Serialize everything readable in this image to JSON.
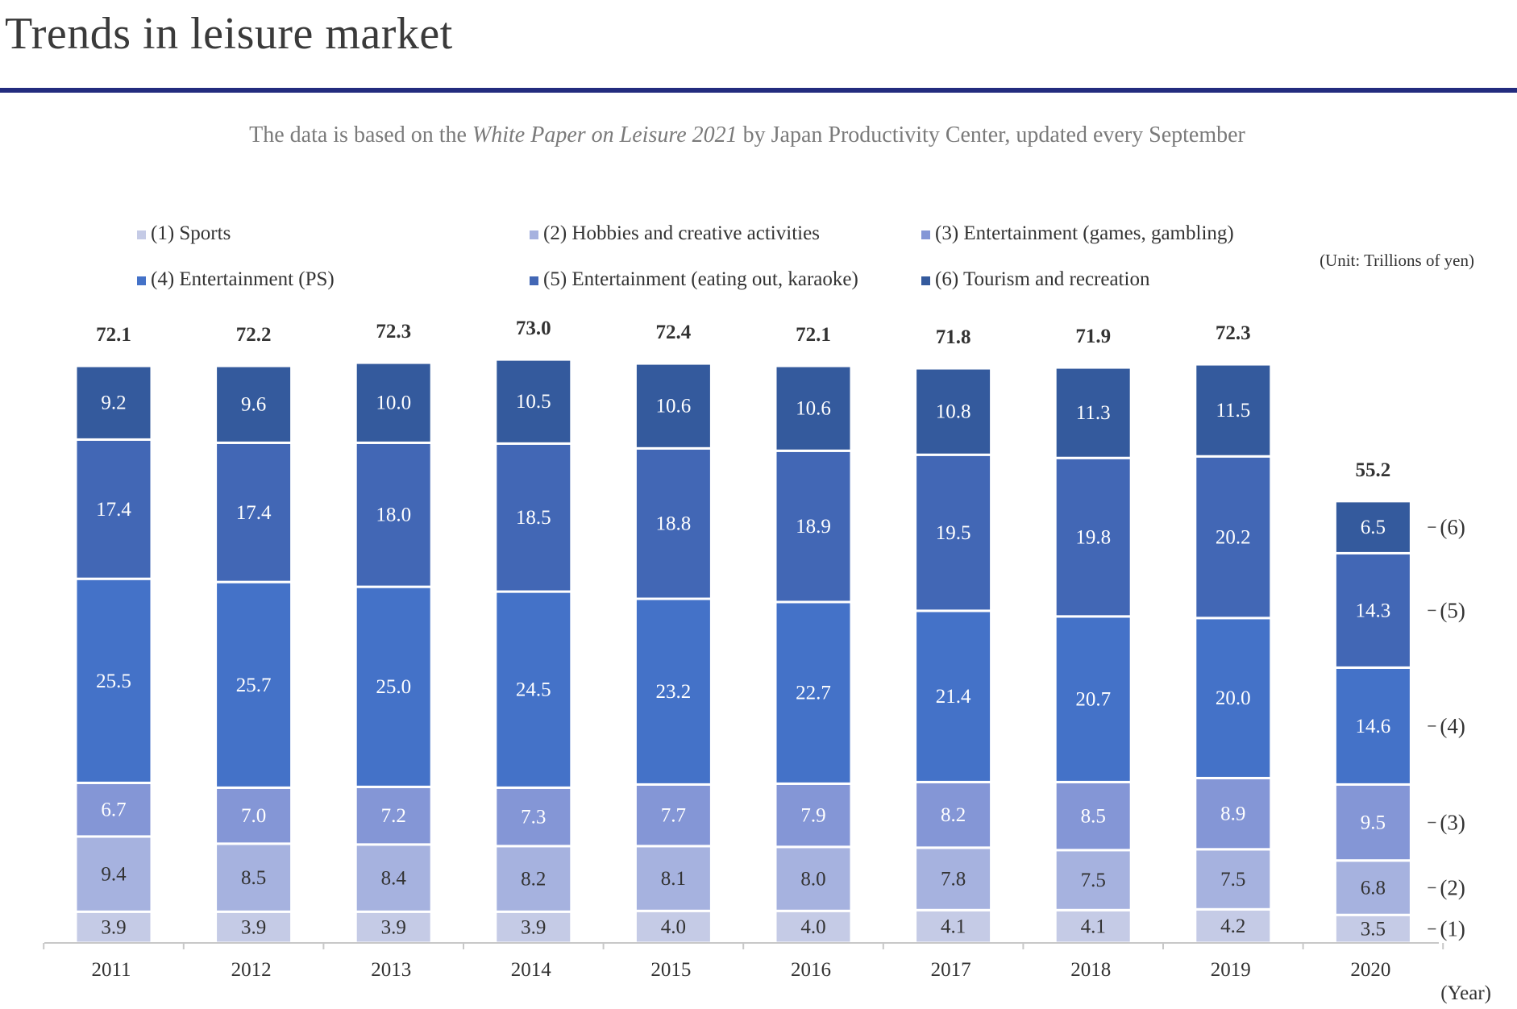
{
  "page": {
    "title": "Trends in leisure market",
    "subtitle_pre": "The data is based on the ",
    "subtitle_em": "White Paper on Leisure 2021",
    "subtitle_post": " by Japan Productivity Center, updated every September"
  },
  "chart_data": {
    "type": "bar",
    "stacked": true,
    "title": "Trends in leisure market",
    "unit_note": "(Unit: Trillions of yen)",
    "xlabel": "(Year)",
    "categories": [
      "2011",
      "2012",
      "2013",
      "2014",
      "2015",
      "2016",
      "2017",
      "2018",
      "2019",
      "2020"
    ],
    "totals": [
      "72.1",
      "72.2",
      "72.3",
      "73.0",
      "72.4",
      "72.1",
      "71.8",
      "71.9",
      "72.3",
      "55.2"
    ],
    "series": [
      {
        "name": "(1) Sports",
        "tag": "(1)",
        "color": "#c5cbe6",
        "text_color": "#333333",
        "values": [
          3.9,
          3.9,
          3.9,
          3.9,
          4.0,
          4.0,
          4.1,
          4.1,
          4.2,
          3.5
        ]
      },
      {
        "name": "(2) Hobbies and creative activities",
        "tag": "(2)",
        "color": "#a6b2df",
        "text_color": "#333333",
        "values": [
          9.4,
          8.5,
          8.4,
          8.2,
          8.1,
          8.0,
          7.8,
          7.5,
          7.5,
          6.8
        ]
      },
      {
        "name": "(3) Entertainment (games, gambling)",
        "tag": "(3)",
        "color": "#8496d6",
        "text_color": "#ffffff",
        "values": [
          6.7,
          7.0,
          7.2,
          7.3,
          7.7,
          7.9,
          8.2,
          8.5,
          8.9,
          9.5
        ]
      },
      {
        "name": "(4) Entertainment (PS)",
        "tag": "(4)",
        "color": "#4472c8",
        "text_color": "#ffffff",
        "values": [
          25.5,
          25.7,
          25.0,
          24.5,
          23.2,
          22.7,
          21.4,
          20.7,
          20.0,
          14.6
        ]
      },
      {
        "name": "(5) Entertainment (eating out, karaoke)",
        "tag": "(5)",
        "color": "#4267b5",
        "text_color": "#ffffff",
        "values": [
          17.4,
          17.4,
          18.0,
          18.5,
          18.8,
          18.9,
          19.5,
          19.8,
          20.2,
          14.3
        ]
      },
      {
        "name": "(6) Tourism and recreation",
        "tag": "(6)",
        "color": "#345a9d",
        "text_color": "#ffffff",
        "values": [
          9.2,
          9.6,
          10.0,
          10.5,
          10.6,
          10.6,
          10.8,
          11.3,
          11.5,
          6.5
        ]
      }
    ],
    "legend_position": "top",
    "grid": false
  }
}
